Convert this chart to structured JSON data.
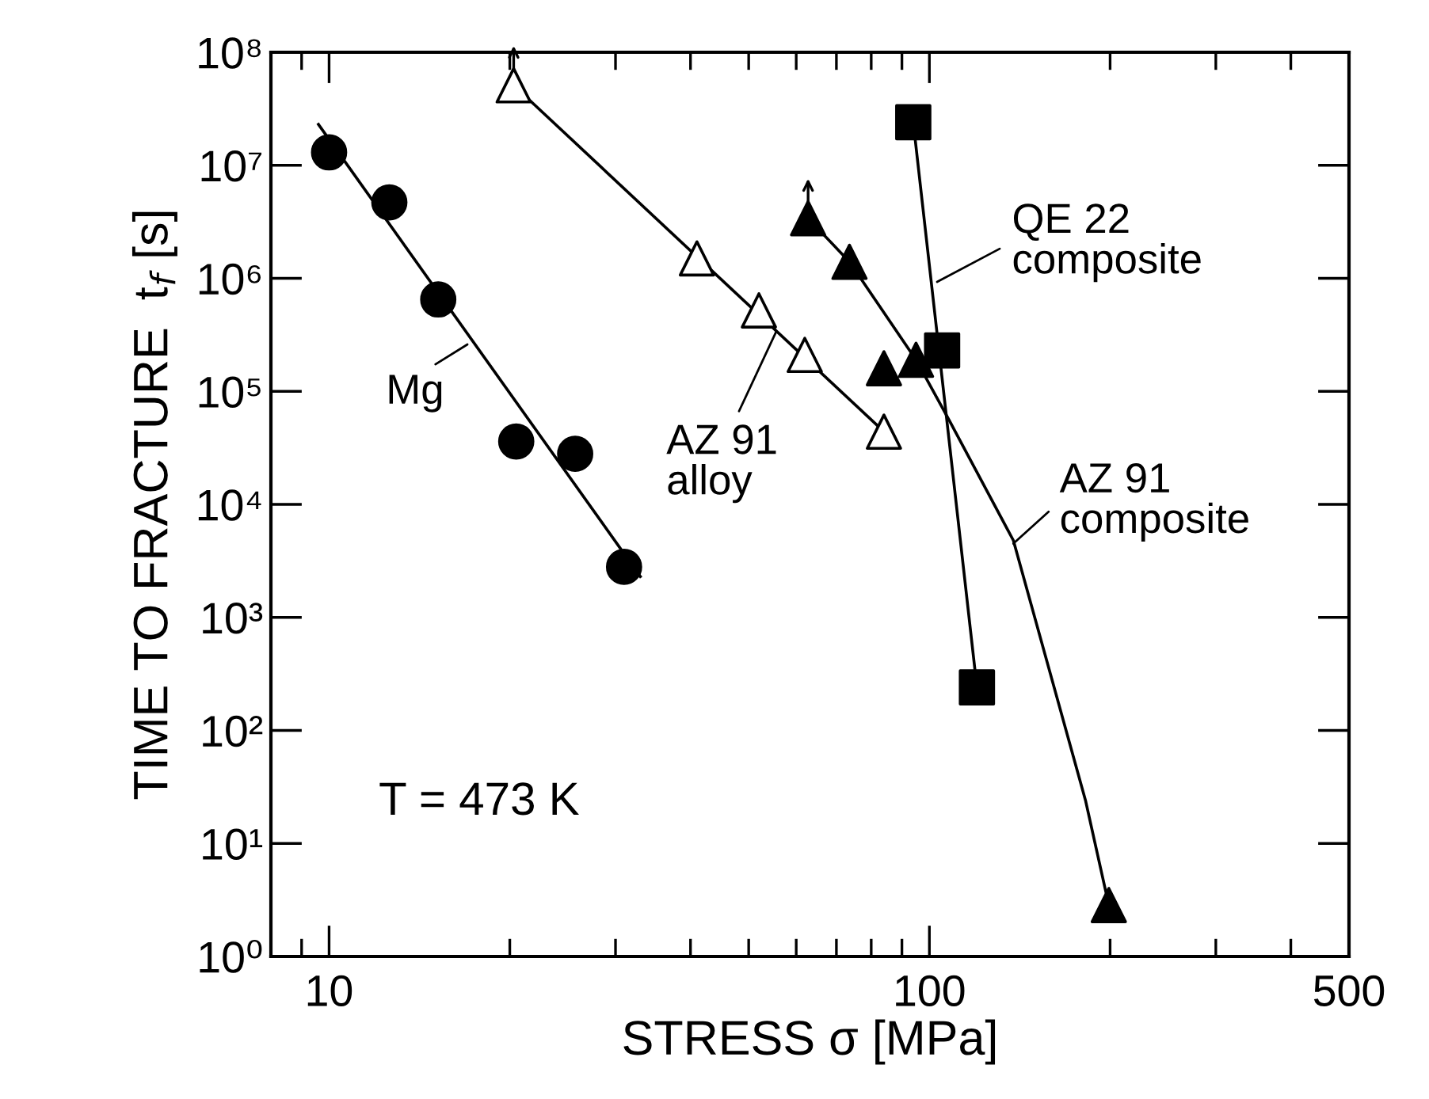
{
  "chart_data": {
    "type": "scatter",
    "xlabel": "STRESS σ [MPa]",
    "ylabel": "TIME TO FRACTURE  t$_{f}$ [s]",
    "log": "xy",
    "grid": false,
    "xlim": [
      8,
      500
    ],
    "ylim": [
      1,
      100000000
    ],
    "xticks": [
      {
        "value": 9,
        "label": null
      },
      10,
      {
        "value": 20,
        "label": null
      },
      {
        "value": 30,
        "label": null
      },
      {
        "value": 40,
        "label": null
      },
      {
        "value": 50,
        "label": null
      },
      {
        "value": 60,
        "label": null
      },
      {
        "value": 70,
        "label": null
      },
      {
        "value": 80,
        "label": null
      },
      {
        "value": 90,
        "label": null
      },
      100,
      {
        "value": 200,
        "label": null
      },
      {
        "value": 300,
        "label": null
      },
      {
        "value": 400,
        "label": null
      },
      500
    ],
    "yticks": [
      {
        "value": 1,
        "label": "10⁰"
      },
      {
        "value": 10,
        "label": "10¹"
      },
      {
        "value": 100,
        "label": "10²"
      },
      {
        "value": 1000,
        "label": "10³"
      },
      {
        "value": 10000,
        "label": "10⁴"
      },
      {
        "value": 100000,
        "label": "10⁵"
      },
      {
        "value": 1000000,
        "label": "10⁶"
      },
      {
        "value": 10000000,
        "label": "10⁷"
      },
      {
        "value": 100000000,
        "label": "10⁸"
      }
    ],
    "series": [
      {
        "type": "line",
        "marker": "none",
        "line_style": "solid",
        "color": "#000000",
        "x": [
          9.6,
          33
        ],
        "values": [
          23000000,
          2300
        ]
      },
      {
        "marker": "circle",
        "color": "#000000",
        "x": [
          10,
          12.6,
          15.2,
          20.5,
          25.7,
          31
        ],
        "values": [
          13000000,
          4700000,
          650000,
          36000,
          28000,
          2800
        ]
      },
      {
        "type": "line",
        "marker": "none",
        "line_style": "solid",
        "color": "#000000",
        "x": [
          20.3,
          84
        ],
        "values": [
          51000000,
          44000
        ]
      },
      {
        "marker": "triangle",
        "color": "#ffffff",
        "x": [
          20.3,
          41,
          52,
          62,
          84
        ],
        "values": [
          51000000,
          1500000,
          520000,
          210000,
          44000
        ]
      },
      {
        "type": "line",
        "marker": "none",
        "line_style": "solid",
        "color": "#000000",
        "x": [
          62.8,
          73.6,
          95,
          108,
          138,
          182,
          199
        ],
        "values": [
          3400000,
          1400000,
          190000,
          55000,
          4800,
          24,
          2.85
        ]
      },
      {
        "marker": "triangle",
        "color": "#000000",
        "x": [
          62.8,
          73.6,
          84,
          95,
          199
        ],
        "values": [
          3400000,
          1400000,
          160000,
          190000,
          2.85
        ]
      },
      {
        "type": "line",
        "marker": "none",
        "line_style": "solid",
        "color": "#000000",
        "x": [
          94,
          120
        ],
        "values": [
          24000000,
          240
        ]
      },
      {
        "marker": "square",
        "color": "#000000",
        "x": [
          94,
          105,
          120
        ],
        "values": [
          24000000,
          230000,
          240
        ]
      }
    ],
    "annotations": [
      {
        "text": "Mg",
        "x": 17,
        "y": 260000
      },
      {
        "text": "AZ 91\nalloy",
        "x": 55.6,
        "y": 340000
      },
      {
        "text": "QE 22\ncomposite",
        "x": 103,
        "y": 930000
      },
      {
        "text": "AZ 91\ncomposite",
        "x": 138,
        "y": 4500
      },
      "T = 473 K"
    ]
  }
}
